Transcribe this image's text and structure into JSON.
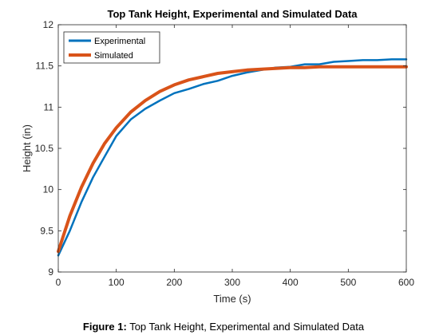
{
  "chart_data": {
    "type": "line",
    "title": "Top Tank Height, Experimental and Simulated Data",
    "xlabel": "Time (s)",
    "ylabel": "Height (in)",
    "xlim": [
      0,
      600
    ],
    "ylim": [
      9,
      12
    ],
    "xticks": [
      "0",
      "100",
      "200",
      "300",
      "400",
      "500",
      "600"
    ],
    "yticks": [
      "9",
      "9.5",
      "10",
      "10.5",
      "11",
      "11.5",
      "12"
    ],
    "grid": false,
    "legend_position": "top-left",
    "x": [
      0,
      20,
      40,
      60,
      80,
      100,
      125,
      150,
      175,
      200,
      225,
      250,
      275,
      300,
      325,
      350,
      375,
      400,
      425,
      450,
      475,
      500,
      525,
      550,
      575,
      600
    ],
    "series": [
      {
        "name": "Experimental",
        "color": "#0072BD",
        "values": [
          9.2,
          9.5,
          9.85,
          10.15,
          10.4,
          10.65,
          10.85,
          10.98,
          11.08,
          11.17,
          11.22,
          11.28,
          11.32,
          11.38,
          11.42,
          11.45,
          11.48,
          11.49,
          11.52,
          11.52,
          11.55,
          11.56,
          11.57,
          11.57,
          11.58,
          11.58
        ]
      },
      {
        "name": "Simulated",
        "color": "#D95319",
        "values": [
          9.25,
          9.68,
          10.03,
          10.32,
          10.56,
          10.75,
          10.94,
          11.08,
          11.19,
          11.27,
          11.33,
          11.37,
          11.41,
          11.43,
          11.45,
          11.46,
          11.47,
          11.48,
          11.48,
          11.49,
          11.49,
          11.49,
          11.49,
          11.49,
          11.49,
          11.49
        ]
      }
    ]
  },
  "caption": {
    "label": "Figure 1:",
    "text": " Top Tank Height, Experimental and Simulated Data"
  }
}
